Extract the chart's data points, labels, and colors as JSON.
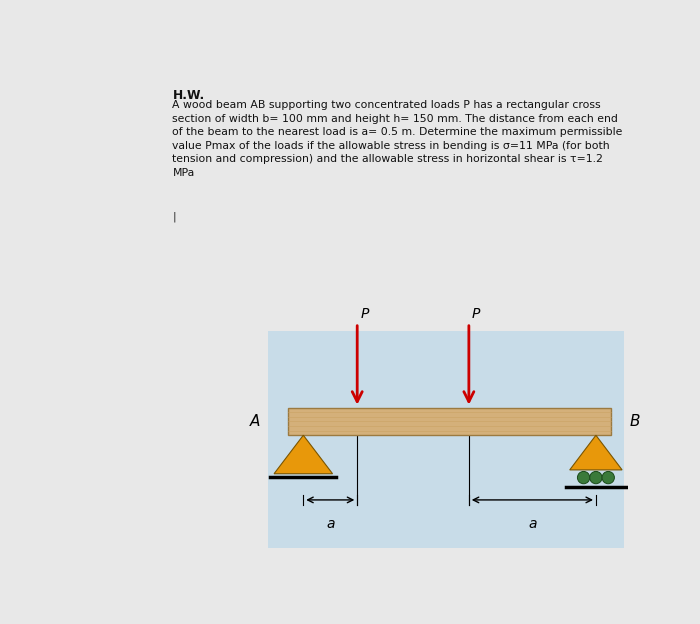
{
  "bg_color": "#e8e8e8",
  "diagram_bg": "#c8dce8",
  "beam_color": "#d4b07a",
  "beam_edge_color": "#9b7a40",
  "grain_color": "#c8a060",
  "title": "H.W.",
  "line1": "A wood beam AB supporting two concentrated loads P has a rectangular cross",
  "line2": "section of width b= 100 mm and height h= 150 mm. The distance from each end",
  "line3": "of the beam to the nearest load is a= 0.5 m. Determine the maximum permissible",
  "line4": "value Pmax of the loads if the allowable stress in bending is σ=11 MPa (for both",
  "line5": "tension and compression) and the allowable stress in horizontal shear is τ=1.2",
  "line6": "MPa",
  "label_A": "A",
  "label_B": "B",
  "label_P": "P",
  "label_a": "a",
  "arrow_color": "#cc0000",
  "support_color": "#e8980a",
  "support_edge": "#7a5500",
  "roller_color": "#3a7a3a",
  "roller_edge": "#1a4a1a",
  "dim_color": "#222222",
  "text_color": "#111111",
  "cursor_color": "#222222"
}
